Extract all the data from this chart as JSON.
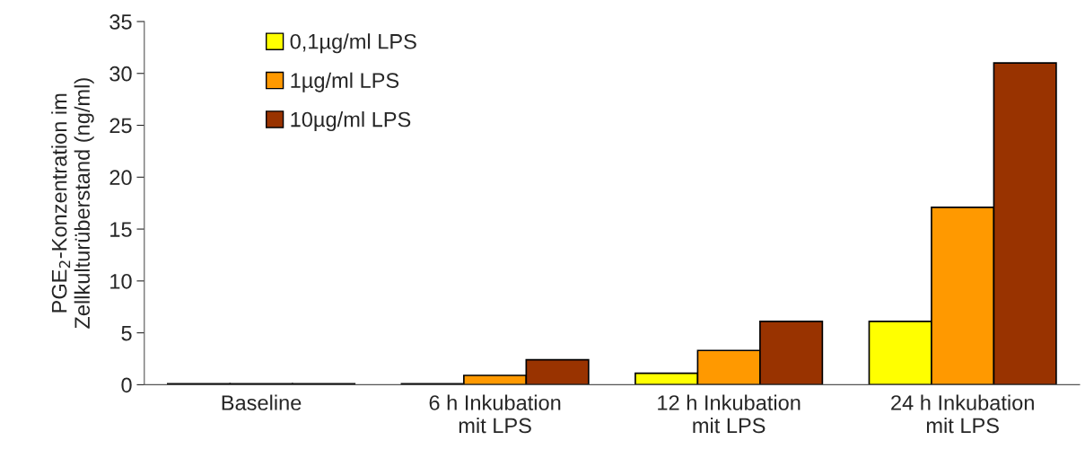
{
  "chart_data": {
    "type": "bar",
    "ylabel": "PGE$_{2}$-Konzentration im\nZellkulturüberstand (ng/ml)",
    "categories": [
      "Baseline",
      "6 h Inkubation\nmit LPS",
      "12 h Inkubation\nmit LPS",
      "24 h Inkubation\nmit LPS"
    ],
    "series": [
      {
        "name": "0,1µg/ml LPS",
        "color": "#ffff00",
        "values": [
          0.1,
          0.1,
          1.1,
          6.1
        ]
      },
      {
        "name": "1µg/ml LPS",
        "color": "#ff9900",
        "values": [
          0.1,
          0.9,
          3.3,
          17.1
        ]
      },
      {
        "name": "10µg/ml LPS",
        "color": "#993300",
        "values": [
          0.1,
          2.4,
          6.1,
          31
        ]
      }
    ],
    "ylim": [
      0,
      35
    ],
    "yticks": [
      0,
      5,
      10,
      15,
      20,
      25,
      30,
      35
    ],
    "grid": false,
    "legend": "top left"
  }
}
